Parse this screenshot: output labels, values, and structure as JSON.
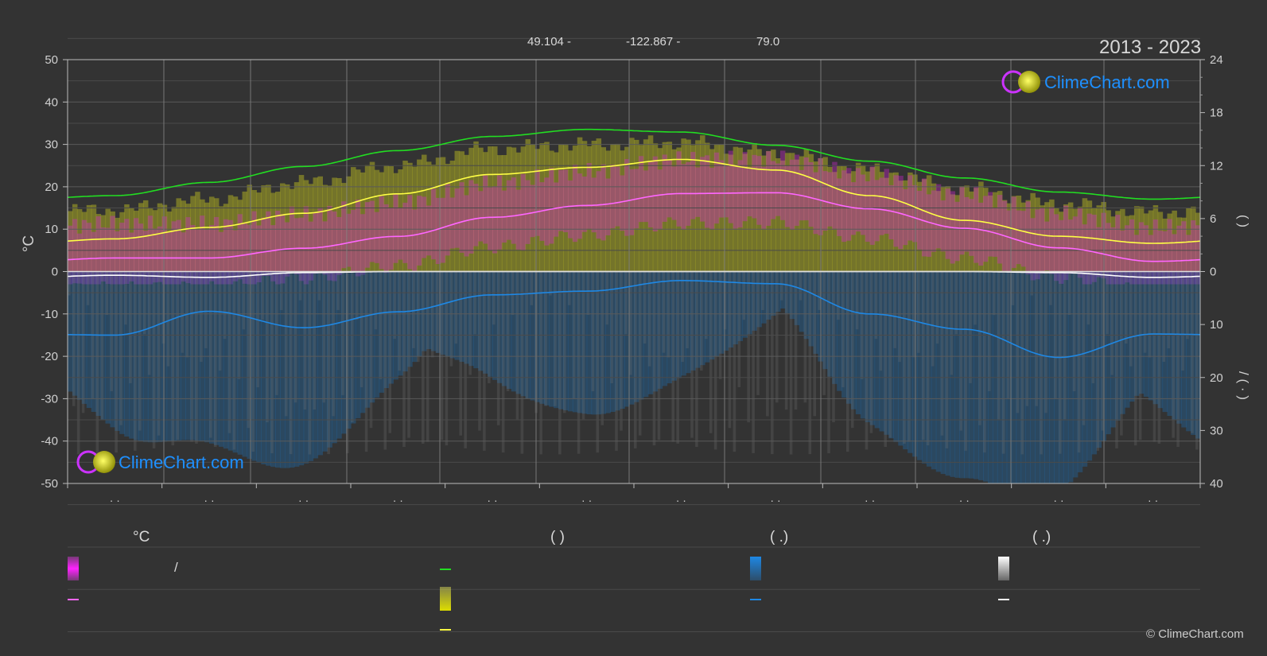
{
  "header": {
    "lat": "49.104 -",
    "lon": "-122.867 -",
    "elev": "79.0",
    "period": "2013 - 2023"
  },
  "logo_text": "ClimeChart.com",
  "copyright": "© ClimeChart.com",
  "colors": {
    "background": "#333333",
    "daylight": "#22dd22",
    "sunshine_line": "#ffff44",
    "mean_temp": "#ff66ff",
    "precip_line": "#1e88e5",
    "snow_line": "#ffffff",
    "temp_band": "#dd22dd",
    "sun_band": "#aaaa22",
    "rain_band": "#1e6fb4",
    "snow_band": "#777777",
    "logo_blue": "#1e90ff"
  },
  "legend": {
    "temp_title": "°C",
    "daylight_title": "(          )",
    "rain_title": "(   .)",
    "snow_title": "(   .)",
    "temp_range_label": "/"
  },
  "chart_data": {
    "type": "line",
    "x": [
      1,
      2,
      3,
      4,
      5,
      6,
      7,
      8,
      9,
      10,
      11,
      12
    ],
    "x_tick_labels": [
      "· ·",
      "· ·",
      "· ·",
      "· ·",
      "· ·",
      "· ·",
      "· ·",
      "· ·",
      "· ·",
      "· ·",
      "· ·",
      "· ·"
    ],
    "ylabel_left": "°C",
    "ylim_left": [
      -50,
      50
    ],
    "yticks_left": [
      50,
      40,
      30,
      20,
      10,
      0,
      -10,
      -20,
      -30,
      -40,
      -50
    ],
    "ylim_right_hours": [
      0,
      24
    ],
    "yticks_right_hours": [
      24,
      18,
      12,
      6,
      0
    ],
    "ylim_right_precip": [
      0,
      40
    ],
    "yticks_right_precip": [
      10,
      20,
      30,
      40
    ],
    "ylabel_right_top": "(   )",
    "ylabel_right_bottom": "/   (   ·   )",
    "grid": true,
    "series": [
      {
        "key": "daylight",
        "unit": "hours",
        "values": [
          8.6,
          10.1,
          11.9,
          13.7,
          15.3,
          16.1,
          15.8,
          14.3,
          12.5,
          10.6,
          9.0,
          8.2
        ]
      },
      {
        "key": "sunshine",
        "unit": "hours",
        "values": [
          3.7,
          5.0,
          6.6,
          8.8,
          11.0,
          11.8,
          12.7,
          11.5,
          8.6,
          5.8,
          4.0,
          3.2
        ]
      },
      {
        "key": "mean_temp",
        "unit": "°C",
        "values": [
          3.2,
          3.2,
          5.5,
          8.3,
          12.8,
          15.6,
          18.4,
          18.6,
          14.8,
          10.2,
          5.6,
          2.4
        ]
      },
      {
        "key": "precipitation",
        "unit": "mm",
        "values": [
          12.0,
          7.5,
          10.6,
          7.6,
          4.4,
          3.7,
          1.7,
          2.3,
          8.0,
          10.9,
          16.2,
          11.8
        ]
      },
      {
        "key": "snow",
        "unit": "mm",
        "values": [
          0.7,
          1.1,
          0.2,
          0.0,
          0.0,
          0.0,
          0.0,
          0.0,
          0.0,
          0.0,
          0.2,
          1.1
        ]
      }
    ],
    "temp_band_top": [
      14.5,
      17.0,
      20.5,
      25.0,
      29.0,
      30.5,
      30.5,
      28.5,
      24.0,
      20.0,
      16.0,
      14.0
    ],
    "sun_band_top": [
      14.5,
      17.0,
      21.0,
      25.0,
      29.0,
      30.0,
      30.5,
      28.0,
      24.0,
      19.5,
      16.0,
      14.0
    ]
  }
}
